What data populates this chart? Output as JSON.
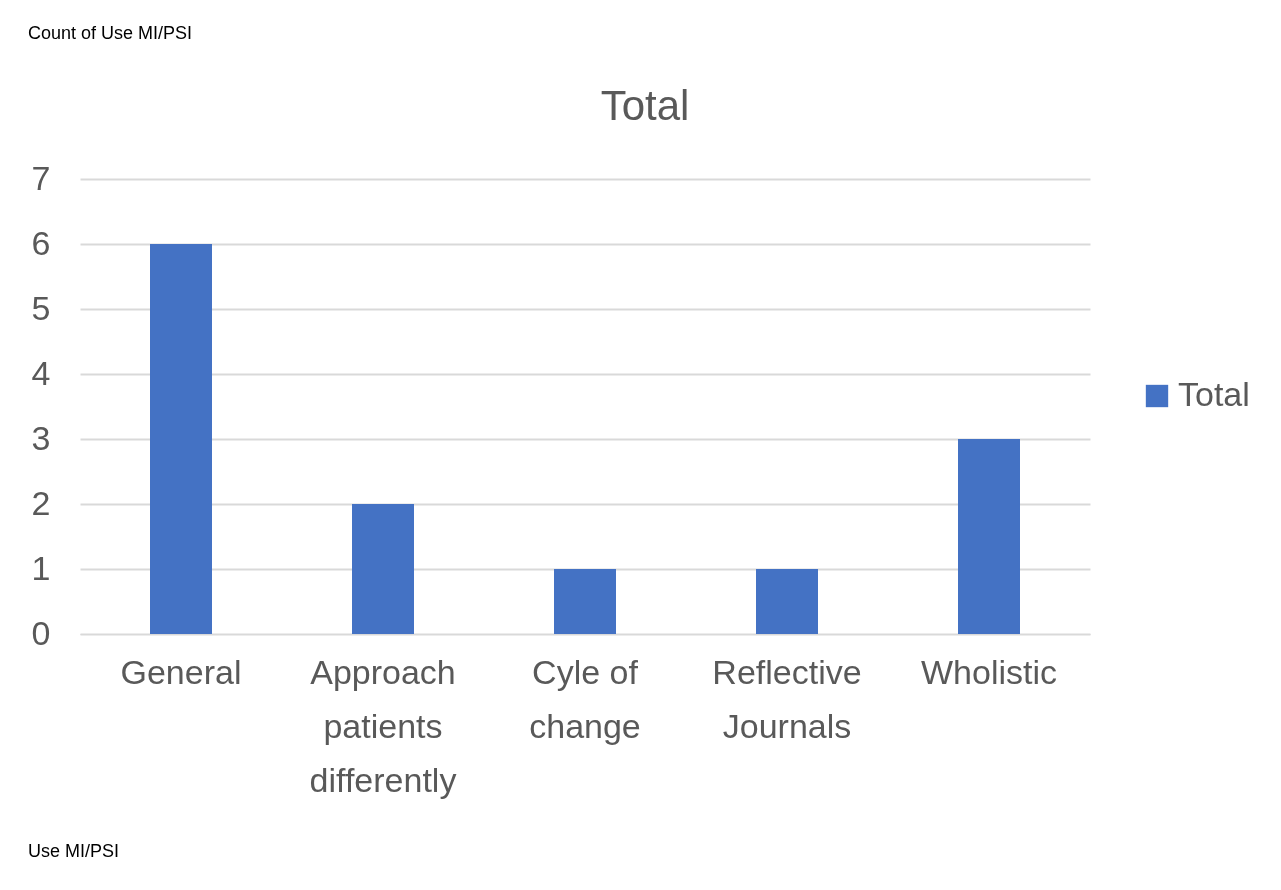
{
  "chart_data": {
    "type": "bar",
    "title": "Total",
    "categories": [
      "General",
      "Approach patients differently",
      "Cyle of change",
      "Reflective Journals",
      "Wholistic"
    ],
    "series": [
      {
        "name": "Total",
        "color": "#4472c4",
        "values": [
          6,
          2,
          1,
          1,
          3
        ]
      }
    ],
    "ylim": [
      0,
      7
    ],
    "yticks": [
      0,
      1,
      2,
      3,
      4,
      5,
      6,
      7
    ],
    "grid": "y",
    "legend": "right",
    "annotations": [
      "Count of Use MI/PSI",
      "Use MI/PSI"
    ]
  }
}
